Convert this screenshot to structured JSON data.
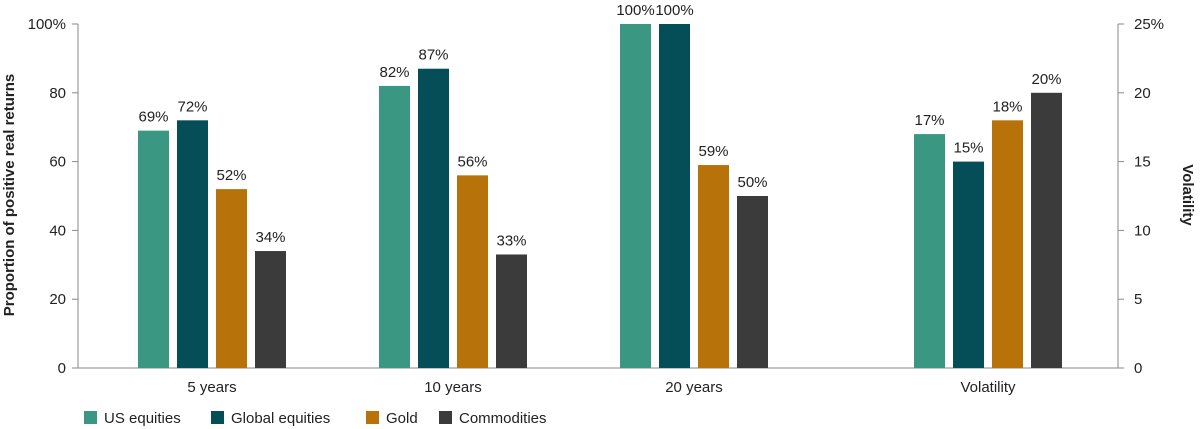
{
  "chart_data": {
    "type": "bar",
    "categories": [
      "5 years",
      "10 years",
      "20 years",
      "Volatility"
    ],
    "series": [
      {
        "name": "US equities",
        "color": "#3a9882",
        "values": [
          69,
          82,
          100,
          17
        ],
        "labels": [
          "69%",
          "82%",
          "100%",
          "17%"
        ]
      },
      {
        "name": "Global equities",
        "color": "#064e57",
        "values": [
          72,
          87,
          100,
          15
        ],
        "labels": [
          "72%",
          "87%",
          "100%",
          "15%"
        ]
      },
      {
        "name": "Gold",
        "color": "#b8720a",
        "values": [
          52,
          56,
          59,
          18
        ],
        "labels": [
          "52%",
          "56%",
          "59%",
          "18%"
        ]
      },
      {
        "name": "Commodities",
        "color": "#3b3b3b",
        "values": [
          34,
          33,
          50,
          20
        ],
        "labels": [
          "34%",
          "33%",
          "50%",
          "20%"
        ]
      }
    ],
    "axes": {
      "left": {
        "label": "Proportion of positive real returns",
        "ylim": [
          0,
          100
        ],
        "ticks": [
          "0",
          "20",
          "40",
          "60",
          "80",
          "100%"
        ]
      },
      "right": {
        "label": "Volatility",
        "ylim": [
          0,
          25
        ],
        "ticks": [
          "0",
          "5",
          "10",
          "15",
          "20",
          "25%"
        ],
        "applies_to": "Volatility"
      }
    },
    "grid": false,
    "legend_position": "bottom-left"
  }
}
